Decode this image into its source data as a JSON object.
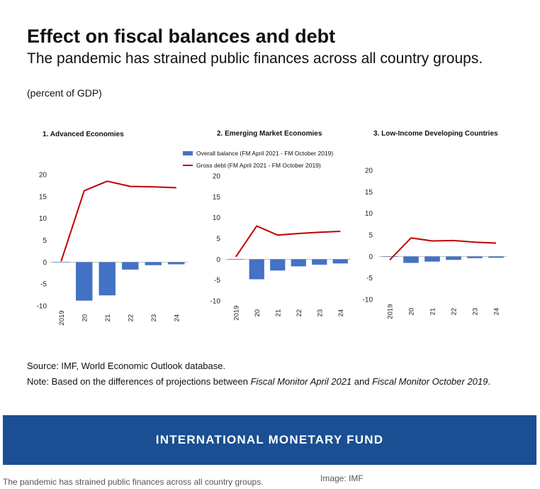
{
  "header": {
    "title": "Effect on fiscal balances and debt",
    "subtitle": "The pandemic has strained public finances across all country groups.",
    "units": "(percent of GDP)"
  },
  "legend": {
    "bar_label": "Overall balance (FM April 2021 - FM October 2019)",
    "line_label": "Gross debt (FM April 2021 - FM October 2019)"
  },
  "colors": {
    "bar": "#4472c4",
    "line": "#c00000",
    "banner": "#1b4f93"
  },
  "footer": {
    "source": "Source: IMF, World Economic Outlook database.",
    "note_prefix": "Note: Based on the differences of projections between ",
    "note_em1": "Fiscal Monitor April 2021",
    "note_mid": " and ",
    "note_em2": "Fiscal Monitor October 2019",
    "note_suffix": "."
  },
  "banner": {
    "text": "INTERNATIONAL MONETARY FUND"
  },
  "caption": {
    "text": "The pandemic has strained public finances across all country groups.",
    "credit": "Image: IMF"
  },
  "chart_data": [
    {
      "type": "bar",
      "title": "1. Advanced Economies",
      "categories": [
        "2019",
        "20",
        "21",
        "22",
        "23",
        "24"
      ],
      "ylim": [
        -10,
        20
      ],
      "yticks": [
        -10,
        -5,
        0,
        5,
        10,
        15,
        20
      ],
      "series": [
        {
          "name": "Overall balance (FM April 2021 - FM October 2019)",
          "kind": "bar",
          "values": [
            0,
            -8.8,
            -7.6,
            -1.7,
            -0.7,
            -0.5
          ]
        },
        {
          "name": "Gross debt (FM April 2021 - FM October 2019)",
          "kind": "line",
          "values": [
            0.2,
            16.3,
            18.5,
            17.3,
            17.2,
            17.0
          ]
        }
      ]
    },
    {
      "type": "bar",
      "title": "2. Emerging Market Economies",
      "categories": [
        "2019",
        "20",
        "21",
        "22",
        "23",
        "24"
      ],
      "ylim": [
        -10,
        20
      ],
      "yticks": [
        -10,
        -5,
        0,
        5,
        10,
        15,
        20
      ],
      "series": [
        {
          "name": "Overall balance (FM April 2021 - FM October 2019)",
          "kind": "bar",
          "values": [
            -0.1,
            -4.8,
            -2.7,
            -1.7,
            -1.3,
            -1.0
          ]
        },
        {
          "name": "Gross debt (FM April 2021 - FM October 2019)",
          "kind": "line",
          "values": [
            0.6,
            8.0,
            5.8,
            6.2,
            6.5,
            6.7
          ]
        }
      ]
    },
    {
      "type": "bar",
      "title": "3. Low-Income Developing Countries",
      "categories": [
        "2019",
        "20",
        "21",
        "22",
        "23",
        "24"
      ],
      "ylim": [
        -10,
        20
      ],
      "yticks": [
        -10,
        -5,
        0,
        5,
        10,
        15,
        20
      ],
      "series": [
        {
          "name": "Overall balance (FM April 2021 - FM October 2019)",
          "kind": "bar",
          "values": [
            -0.1,
            -1.5,
            -1.2,
            -0.8,
            -0.4,
            -0.3
          ]
        },
        {
          "name": "Gross debt (FM April 2021 - FM October 2019)",
          "kind": "line",
          "values": [
            -0.8,
            4.3,
            3.6,
            3.7,
            3.3,
            3.1
          ]
        }
      ]
    }
  ]
}
